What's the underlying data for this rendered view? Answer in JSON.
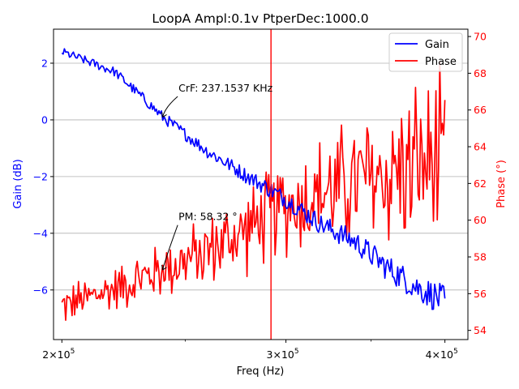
{
  "chart_data": {
    "type": "line",
    "title": "LoopA  Ampl:0.1v  PtperDec:1000.0",
    "xlabel": "Freq (Hz)",
    "ylabel_left": "Gain (dB)",
    "ylabel_right": "Phase (°)",
    "x_scale": "log",
    "xlim": [
      197000,
      417000
    ],
    "ylim_left": [
      -7.75,
      3.2
    ],
    "ylim_right": [
      53.5,
      70.4
    ],
    "grid": "horizontal on left axis",
    "legend_position": "top-right",
    "x_ticks": [
      {
        "value": 200000,
        "base": "2×10",
        "exp": "5"
      },
      {
        "value": 300000,
        "base": "3×10",
        "exp": "5"
      },
      {
        "value": 400000,
        "base": "4×10",
        "exp": "5"
      }
    ],
    "left_ticks": [
      {
        "value": 2,
        "label": "2"
      },
      {
        "value": 0,
        "label": "0"
      },
      {
        "value": -2,
        "label": "−2"
      },
      {
        "value": -4,
        "label": "−4"
      },
      {
        "value": -6,
        "label": "−6"
      }
    ],
    "right_ticks": [
      {
        "value": 54,
        "label": "54"
      },
      {
        "value": 56,
        "label": "56"
      },
      {
        "value": 58,
        "label": "58"
      },
      {
        "value": 60,
        "label": "60"
      },
      {
        "value": 62,
        "label": "62"
      },
      {
        "value": 64,
        "label": "64"
      },
      {
        "value": 66,
        "label": "66"
      },
      {
        "value": 68,
        "label": "68"
      },
      {
        "value": 70,
        "label": "70"
      }
    ],
    "crossover_line_x": 292000,
    "annotations": [
      {
        "text": "CrF:  237.1537 KHz",
        "x": 240000,
        "y_gain": 0.1,
        "text_x": 247000,
        "text_y_gain": 1.0
      },
      {
        "text": "PM:  58.32 °",
        "x": 240000,
        "y_phase": 57.3,
        "text_x": 247000,
        "text_y_phase": 60.0
      }
    ],
    "series": [
      {
        "name": "Gain",
        "axis": "left",
        "color": "#0000ff",
        "x_range": [
          200000,
          400000
        ],
        "trend_points": [
          [
            200000,
            2.4
          ],
          [
            220000,
            1.7
          ],
          [
            240000,
            0.1
          ],
          [
            260000,
            -1.1
          ],
          [
            280000,
            -2.0
          ],
          [
            300000,
            -2.8
          ],
          [
            320000,
            -3.7
          ],
          [
            340000,
            -4.3
          ],
          [
            360000,
            -5.2
          ],
          [
            380000,
            -5.9
          ],
          [
            400000,
            -6.4
          ]
        ],
        "noise_amplitude": [
          0.15,
          0.55
        ]
      },
      {
        "name": "Phase",
        "axis": "right",
        "color": "#ff0000",
        "x_range": [
          200000,
          400000
        ],
        "trend_points": [
          [
            200000,
            55.3
          ],
          [
            220000,
            56.3
          ],
          [
            240000,
            57.3
          ],
          [
            260000,
            58.3
          ],
          [
            280000,
            59.5
          ],
          [
            300000,
            60.8
          ],
          [
            320000,
            61.5
          ],
          [
            340000,
            62.0
          ],
          [
            360000,
            62.5
          ],
          [
            380000,
            63.0
          ],
          [
            400000,
            63.0
          ]
        ],
        "noise_amplitude": [
          0.9,
          4.0
        ]
      }
    ],
    "legend": [
      "Gain",
      "Phase"
    ]
  }
}
